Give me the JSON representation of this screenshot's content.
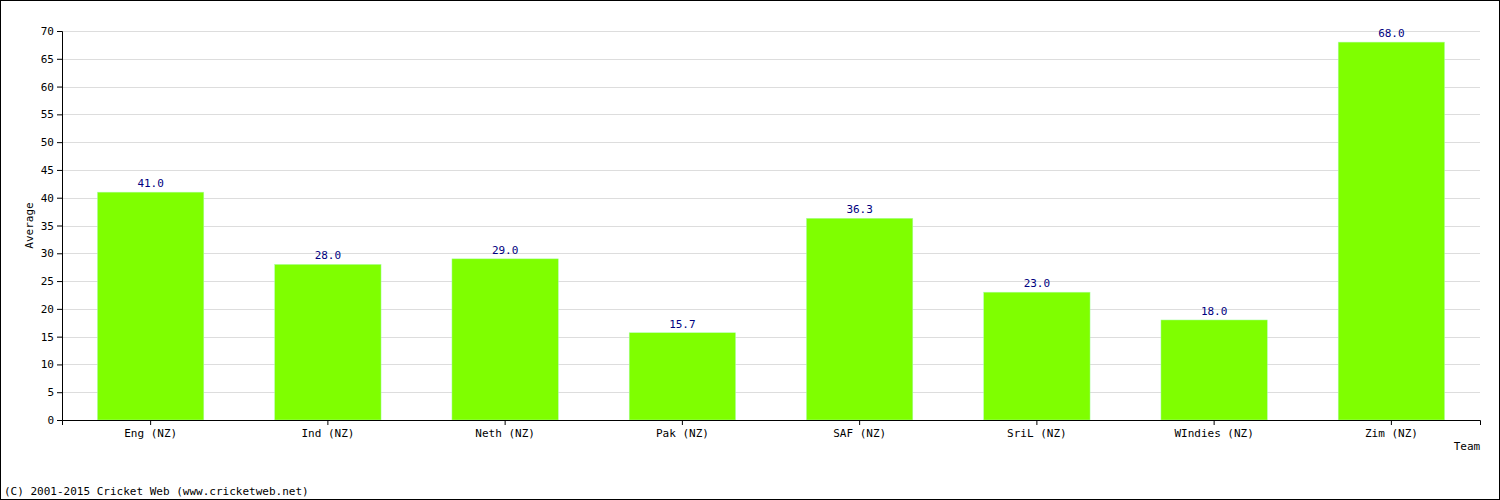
{
  "chart_data": {
    "type": "bar",
    "x_label": "Team",
    "y_label": "Average",
    "annotations": [
      "(C) 2001-2015 Cricket Web (www.cricketweb.net)"
    ],
    "categories": [
      "Eng (NZ)",
      "Ind (NZ)",
      "Neth (NZ)",
      "Pak (NZ)",
      "SAF (NZ)",
      "SriL (NZ)",
      "WIndies (NZ)",
      "Zim (NZ)"
    ],
    "values": [
      41.0,
      28.0,
      29.0,
      15.7,
      36.3,
      23.0,
      18.0,
      68.0
    ],
    "value_labels": [
      "41.0",
      "28.0",
      "29.0",
      "15.7",
      "36.3",
      "23.0",
      "18.0",
      "68.0"
    ],
    "data_labels": true,
    "color": "#7fff00",
    "ylim": [
      0,
      70
    ],
    "yticks": [
      0,
      5,
      10,
      15,
      20,
      25,
      30,
      35,
      40,
      45,
      50,
      55,
      60,
      65,
      70
    ],
    "grid": true
  }
}
